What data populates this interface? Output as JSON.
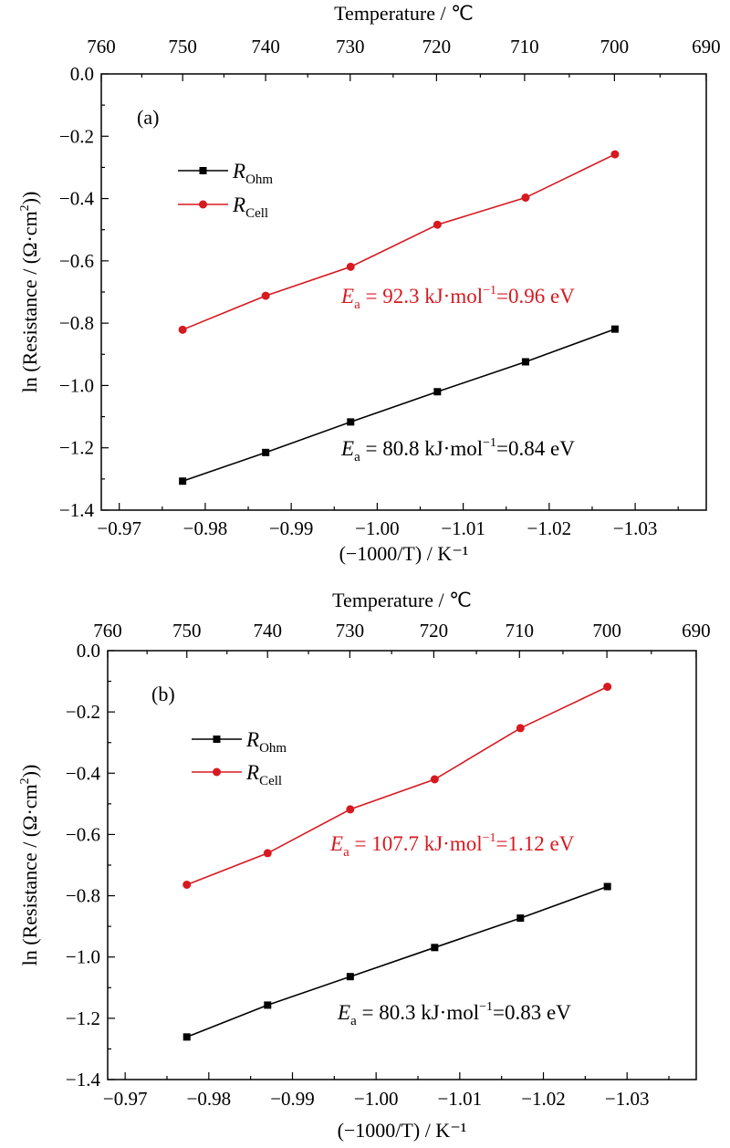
{
  "chart_data": [
    {
      "type": "line",
      "panel_label": "(a)",
      "top_axis_title": "Temperature / ℃",
      "top_axis_ticks": [
        760,
        750,
        740,
        730,
        720,
        710,
        700,
        690
      ],
      "xlabel": "(−1000/T) / K⁻¹",
      "ylabel": "ln (Resistance / (Ω·cm²))",
      "xlim": [
        -0.96791,
        -1.03827
      ],
      "ylim": [
        -1.4,
        0.0
      ],
      "x_ticks": [
        "−0.97",
        "−0.98",
        "−0.99",
        "−1.00",
        "−1.01",
        "−1.02",
        "−1.03"
      ],
      "y_ticks": [
        "0.0",
        "−0.2",
        "−0.4",
        "−0.6",
        "−0.8",
        "−1.0",
        "−1.2",
        "−1.4"
      ],
      "x": [
        -0.97737,
        -0.98703,
        -0.99691,
        -1.007,
        -1.01725,
        -1.02765
      ],
      "series": [
        {
          "name": "R",
          "subscript": "Ohm",
          "color": "#000000",
          "marker": "square",
          "values": [
            -1.307,
            -1.215,
            -1.117,
            -1.02,
            -0.924,
            -0.819
          ]
        },
        {
          "name": "R",
          "subscript": "Cell",
          "color": "#d71920",
          "marker": "circle",
          "values": [
            -0.821,
            -0.712,
            -0.619,
            -0.484,
            -0.397,
            -0.258
          ]
        }
      ],
      "annotations": [
        {
          "pre": "E",
          "sub": "a",
          "text": " = 92.3 kJ·mol",
          "sup": "−1",
          "post": "=0.96 eV",
          "color": "#d71920"
        },
        {
          "pre": "E",
          "sub": "a",
          "text": " = 80.8 kJ·mol",
          "sup": "−1",
          "post": "=0.84 eV",
          "color": "#000000"
        }
      ]
    },
    {
      "type": "line",
      "panel_label": "(b)",
      "top_axis_title": "Temperature / ℃",
      "top_axis_ticks": [
        760,
        750,
        740,
        730,
        720,
        710,
        700,
        690
      ],
      "xlabel": "(−1000/T) / K⁻¹",
      "ylabel": "ln (Resistance / (Ω·cm²))",
      "xlim": [
        -0.96791,
        -1.03827
      ],
      "ylim": [
        -1.4,
        0.0
      ],
      "x_ticks": [
        "−0.97",
        "−0.98",
        "−0.99",
        "−1.00",
        "−1.01",
        "−1.02",
        "−1.03"
      ],
      "y_ticks": [
        "0.0",
        "−0.2",
        "−0.4",
        "−0.6",
        "−0.8",
        "−1.0",
        "−1.2",
        "−1.4"
      ],
      "x": [
        -0.97737,
        -0.98703,
        -0.99691,
        -1.007,
        -1.01725,
        -1.02765
      ],
      "series": [
        {
          "name": "R",
          "subscript": "Ohm",
          "color": "#000000",
          "marker": "square",
          "values": [
            -1.261,
            -1.157,
            -1.064,
            -0.969,
            -0.873,
            -0.77
          ]
        },
        {
          "name": "R",
          "subscript": "Cell",
          "color": "#d71920",
          "marker": "circle",
          "values": [
            -0.764,
            -0.661,
            -0.518,
            -0.42,
            -0.253,
            -0.118
          ]
        }
      ],
      "annotations": [
        {
          "pre": "E",
          "sub": "a",
          "text": " = 107.7 kJ·mol",
          "sup": "−1",
          "post": "=1.12 eV",
          "color": "#d71920"
        },
        {
          "pre": "E",
          "sub": "a",
          "text": " = 80.3 kJ·mol",
          "sup": "−1",
          "post": "=0.83 eV",
          "color": "#000000"
        }
      ]
    }
  ]
}
